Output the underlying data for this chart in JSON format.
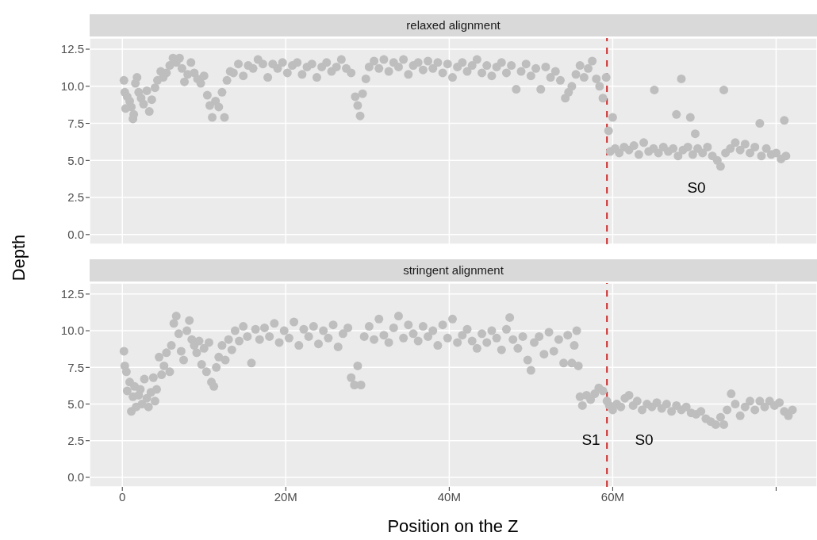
{
  "chart_data": [
    {
      "type": "scatter",
      "title": "relaxed alignment",
      "ylabel": "Depth",
      "color": "#bebebe",
      "marker": "circle",
      "grid": true,
      "tick_labels": "y",
      "xlim": [
        -4,
        85
      ],
      "ylim": [
        -0.65,
        13.25
      ],
      "xticks": [
        {
          "value": 0,
          "label": null
        },
        {
          "value": 20,
          "label": null
        },
        {
          "value": 40,
          "label": null
        },
        {
          "value": 60,
          "label": null
        },
        {
          "value": 80,
          "label": null
        }
      ],
      "yticks": [
        {
          "value": 0,
          "label": "0.0"
        },
        2.5,
        {
          "value": 5,
          "label": "5.0"
        },
        7.5,
        {
          "value": 10,
          "label": "10.0"
        },
        12.5
      ],
      "ref_lines": [
        {
          "axis": "x",
          "value": 59.3,
          "color": "#cc2a2a",
          "line_style": "dashed"
        }
      ],
      "annotations": [
        "S0"
      ],
      "x": [
        0.2,
        0.3,
        0.4,
        0.6,
        0.9,
        1.1,
        1.3,
        1.4,
        1.6,
        1.8,
        2.0,
        2.3,
        2.6,
        3.0,
        3.3,
        3.6,
        4.0,
        4.3,
        4.7,
        5.0,
        5.4,
        5.8,
        6.2,
        6.6,
        7.0,
        7.3,
        7.6,
        8.0,
        8.4,
        8.8,
        9.2,
        9.6,
        10.0,
        10.4,
        10.7,
        11.0,
        11.4,
        11.8,
        12.2,
        12.5,
        12.8,
        13.2,
        13.6,
        14.2,
        14.8,
        15.4,
        16.0,
        16.6,
        17.2,
        17.8,
        18.4,
        19.0,
        19.6,
        20.2,
        20.8,
        21.4,
        22.0,
        22.6,
        23.2,
        23.8,
        24.4,
        25.0,
        25.6,
        26.2,
        26.8,
        27.4,
        28.0,
        28.5,
        28.8,
        29.1,
        29.4,
        29.8,
        30.2,
        30.8,
        31.4,
        32.0,
        32.6,
        33.2,
        33.8,
        34.4,
        35.0,
        35.6,
        36.2,
        36.8,
        37.4,
        38.0,
        38.6,
        39.2,
        39.8,
        40.4,
        41.0,
        41.6,
        42.2,
        42.8,
        43.4,
        44.0,
        44.6,
        45.2,
        45.8,
        46.4,
        47.0,
        47.6,
        48.2,
        48.8,
        49.4,
        50.0,
        50.6,
        51.2,
        51.8,
        52.4,
        53.0,
        53.6,
        54.2,
        54.6,
        55.0,
        55.5,
        56.0,
        56.5,
        57.0,
        57.5,
        58.0,
        58.4,
        58.8,
        59.2,
        59.5,
        59.7,
        60.0,
        60.3,
        60.8,
        61.4,
        62.0,
        62.6,
        63.2,
        63.8,
        64.4,
        65.0,
        65.1,
        65.6,
        66.2,
        66.8,
        67.4,
        67.8,
        68.0,
        68.4,
        68.6,
        69.2,
        69.5,
        69.8,
        70.1,
        70.4,
        71.0,
        71.6,
        72.2,
        72.8,
        73.2,
        73.6,
        73.8,
        74.4,
        75.0,
        75.6,
        76.2,
        76.8,
        77.4,
        78.0,
        78.2,
        78.8,
        79.4,
        80.0,
        80.6,
        81.0,
        81.2
      ],
      "values": [
        10.4,
        9.6,
        8.5,
        9.3,
        9.0,
        8.6,
        7.8,
        8.1,
        10.2,
        10.6,
        9.6,
        9.2,
        8.8,
        9.7,
        8.3,
        9.1,
        9.9,
        10.4,
        11.0,
        10.6,
        10.9,
        11.4,
        11.9,
        11.6,
        11.9,
        11.2,
        10.3,
        10.8,
        11.6,
        10.9,
        10.5,
        10.2,
        10.7,
        9.4,
        8.7,
        7.9,
        9.0,
        8.6,
        9.6,
        7.9,
        10.4,
        11.0,
        10.9,
        11.5,
        10.7,
        11.4,
        11.2,
        11.8,
        11.5,
        10.6,
        11.5,
        11.2,
        11.6,
        10.9,
        11.4,
        11.6,
        10.8,
        11.3,
        11.5,
        10.6,
        11.3,
        11.6,
        11.0,
        11.3,
        11.8,
        11.2,
        10.9,
        9.3,
        8.7,
        8.0,
        9.5,
        10.5,
        11.3,
        11.7,
        11.2,
        11.8,
        11.0,
        11.6,
        11.3,
        11.8,
        10.8,
        11.4,
        11.6,
        11.1,
        11.7,
        11.2,
        11.6,
        10.9,
        11.5,
        10.6,
        11.3,
        11.6,
        11.0,
        11.4,
        11.8,
        10.9,
        11.4,
        10.7,
        11.3,
        11.6,
        10.9,
        11.4,
        9.8,
        11.0,
        11.5,
        10.7,
        11.2,
        9.8,
        11.3,
        10.6,
        11.0,
        10.4,
        9.2,
        9.6,
        10.0,
        10.8,
        11.4,
        10.6,
        11.2,
        11.7,
        10.5,
        10.0,
        9.2,
        10.6,
        7.0,
        5.6,
        7.9,
        5.8,
        5.5,
        5.9,
        5.7,
        6.0,
        5.4,
        6.2,
        5.6,
        5.8,
        9.75,
        5.5,
        5.9,
        5.6,
        5.8,
        8.1,
        5.3,
        10.5,
        5.7,
        5.9,
        7.9,
        5.4,
        6.8,
        5.8,
        5.5,
        5.9,
        5.3,
        5.0,
        4.6,
        9.75,
        5.5,
        5.8,
        6.2,
        5.7,
        6.1,
        5.5,
        5.9,
        7.5,
        5.3,
        5.8,
        5.4,
        5.5,
        5.1,
        7.7,
        5.3
      ]
    },
    {
      "type": "scatter",
      "title": "stringent alignment",
      "xlabel": "Position on the Z",
      "color": "#bebebe",
      "marker": "circle",
      "grid": true,
      "xlim": [
        -4,
        85
      ],
      "ylim": [
        -0.65,
        13.25
      ],
      "xticks": [
        0,
        {
          "value": 20,
          "label": "20M"
        },
        {
          "value": 40,
          "label": "40M"
        },
        {
          "value": 60,
          "label": "60M"
        },
        {
          "value": 80,
          "label": null
        }
      ],
      "yticks": [
        {
          "value": 0,
          "label": "0.0"
        },
        2.5,
        {
          "value": 5,
          "label": "5.0"
        },
        7.5,
        {
          "value": 10,
          "label": "10.0"
        },
        12.5
      ],
      "ref_lines": [
        {
          "axis": "x",
          "value": 59.3,
          "color": "#cc2a2a",
          "line_style": "dashed"
        }
      ],
      "annotations": [
        "S1",
        "S0"
      ],
      "x": [
        0.2,
        0.3,
        0.5,
        0.6,
        0.9,
        1.1,
        1.3,
        1.5,
        1.7,
        2.0,
        2.2,
        2.4,
        2.7,
        3.0,
        3.2,
        3.5,
        3.8,
        4.0,
        4.2,
        4.5,
        4.8,
        5.1,
        5.4,
        5.8,
        6.0,
        6.3,
        6.6,
        6.9,
        7.2,
        7.5,
        7.9,
        8.2,
        8.5,
        8.8,
        9.1,
        9.4,
        9.7,
        10.0,
        10.3,
        10.6,
        10.9,
        11.2,
        11.5,
        11.8,
        12.2,
        12.6,
        13.0,
        13.4,
        13.8,
        14.3,
        14.8,
        15.3,
        15.8,
        16.3,
        16.8,
        17.4,
        18.0,
        18.6,
        19.2,
        19.8,
        20.4,
        21.0,
        21.6,
        22.2,
        22.8,
        23.4,
        24.0,
        24.6,
        25.2,
        25.8,
        26.4,
        27.0,
        27.6,
        28.0,
        28.4,
        28.8,
        29.2,
        29.6,
        30.2,
        30.8,
        31.4,
        32.0,
        32.6,
        33.2,
        33.8,
        34.4,
        35.0,
        35.6,
        36.2,
        36.8,
        37.4,
        38.0,
        38.6,
        39.2,
        39.8,
        40.4,
        41.0,
        41.6,
        42.2,
        42.8,
        43.4,
        44.0,
        44.6,
        45.2,
        45.8,
        46.4,
        47.0,
        47.4,
        47.8,
        48.4,
        49.0,
        49.6,
        50.0,
        50.4,
        51.0,
        51.6,
        52.2,
        52.8,
        53.4,
        54.0,
        54.5,
        55.0,
        55.3,
        55.6,
        55.8,
        56.0,
        56.3,
        56.8,
        57.3,
        57.8,
        58.3,
        58.8,
        59.3,
        59.6,
        60.0,
        60.5,
        61.0,
        61.5,
        62.0,
        62.5,
        63.0,
        63.6,
        64.2,
        64.8,
        65.4,
        66.0,
        66.6,
        67.2,
        67.8,
        68.4,
        69.0,
        69.6,
        70.2,
        70.8,
        71.4,
        72.0,
        72.6,
        73.2,
        73.6,
        74.0,
        74.5,
        75.0,
        75.6,
        76.2,
        76.8,
        77.4,
        78.0,
        78.6,
        79.2,
        79.8,
        80.4,
        81.0,
        81.5,
        82.0
      ],
      "values": [
        8.6,
        7.6,
        7.2,
        5.9,
        6.5,
        4.5,
        5.5,
        6.2,
        4.8,
        5.6,
        6.0,
        5.0,
        6.7,
        5.4,
        4.8,
        5.8,
        6.8,
        5.2,
        6.0,
        8.2,
        7.0,
        7.6,
        8.5,
        7.2,
        9.0,
        10.5,
        11.0,
        9.8,
        8.6,
        8.0,
        10.0,
        10.7,
        9.4,
        9.0,
        8.5,
        9.3,
        7.7,
        8.8,
        7.2,
        9.2,
        6.5,
        6.2,
        7.5,
        8.2,
        9.0,
        8.0,
        9.4,
        8.7,
        10.0,
        9.3,
        10.3,
        9.6,
        7.8,
        10.1,
        9.4,
        10.2,
        9.6,
        10.5,
        9.2,
        10.0,
        9.5,
        10.6,
        9.0,
        10.1,
        9.6,
        10.3,
        9.1,
        10.0,
        9.5,
        10.4,
        8.9,
        9.8,
        10.2,
        6.8,
        6.3,
        7.6,
        6.3,
        9.6,
        10.3,
        9.4,
        10.8,
        9.7,
        9.2,
        10.2,
        11.0,
        9.5,
        10.4,
        9.8,
        9.3,
        10.3,
        9.6,
        10.0,
        9.0,
        10.4,
        9.5,
        10.8,
        9.2,
        9.7,
        10.1,
        9.3,
        8.8,
        9.8,
        9.2,
        10.0,
        9.5,
        8.7,
        10.1,
        10.9,
        9.4,
        8.8,
        9.6,
        8.0,
        7.3,
        9.2,
        9.6,
        8.4,
        9.9,
        8.6,
        9.4,
        7.8,
        9.7,
        7.8,
        9.0,
        10.0,
        7.6,
        5.5,
        4.9,
        5.6,
        5.3,
        5.7,
        6.1,
        5.9,
        5.2,
        4.9,
        4.6,
        5.0,
        4.8,
        5.4,
        5.6,
        4.9,
        5.2,
        4.6,
        5.0,
        4.8,
        5.1,
        4.7,
        5.0,
        4.5,
        4.9,
        4.6,
        4.8,
        4.4,
        4.3,
        4.5,
        4.0,
        3.8,
        3.6,
        4.1,
        3.6,
        4.6,
        5.7,
        5.0,
        4.2,
        4.8,
        5.2,
        4.6,
        5.2,
        4.8,
        5.2,
        4.9,
        5.1,
        4.5,
        4.2,
        4.6
      ]
    }
  ]
}
